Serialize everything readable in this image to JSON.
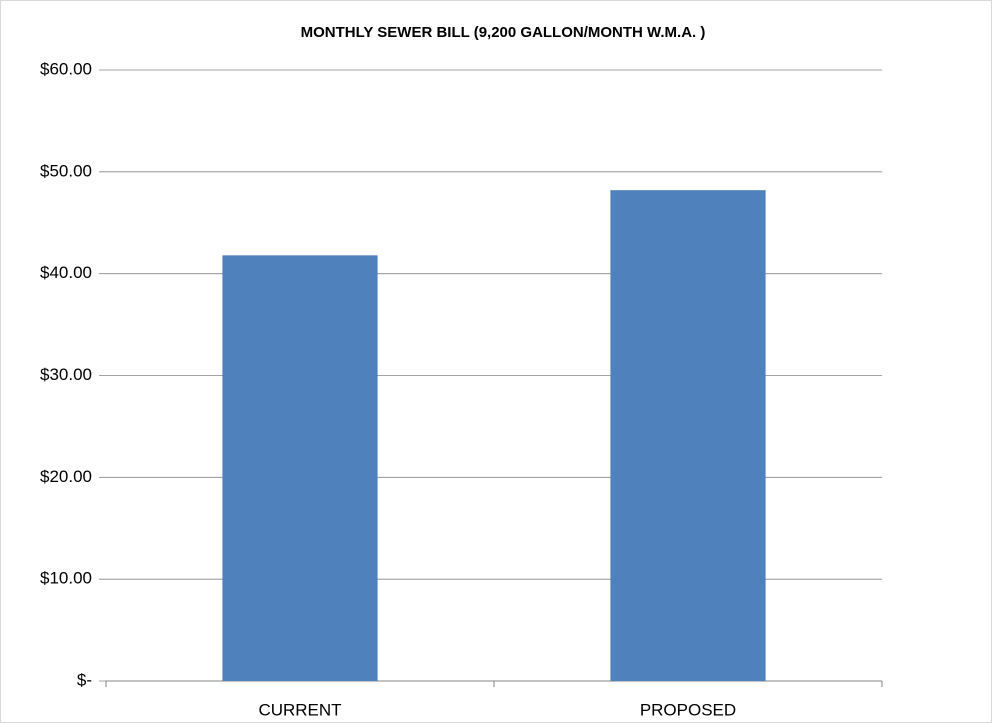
{
  "chart_data": {
    "type": "bar",
    "title": "MONTHLY SEWER BILL  (9,200 GALLON/MONTH W.M.A. )",
    "categories": [
      "CURRENT",
      "PROPOSED"
    ],
    "values": [
      41.8,
      48.2
    ],
    "color": "#4f81bd",
    "ylim": [
      0,
      60
    ],
    "yticks": [
      {
        "value": 0,
        "label": "$-"
      },
      {
        "value": 10,
        "label": "$10.00"
      },
      {
        "value": 20,
        "label": "$20.00"
      },
      {
        "value": 30,
        "label": "$30.00"
      },
      {
        "value": 40,
        "label": "$40.00"
      },
      {
        "value": 50,
        "label": "$50.00"
      },
      {
        "value": 60,
        "label": "$60.00"
      }
    ],
    "grid": true
  }
}
